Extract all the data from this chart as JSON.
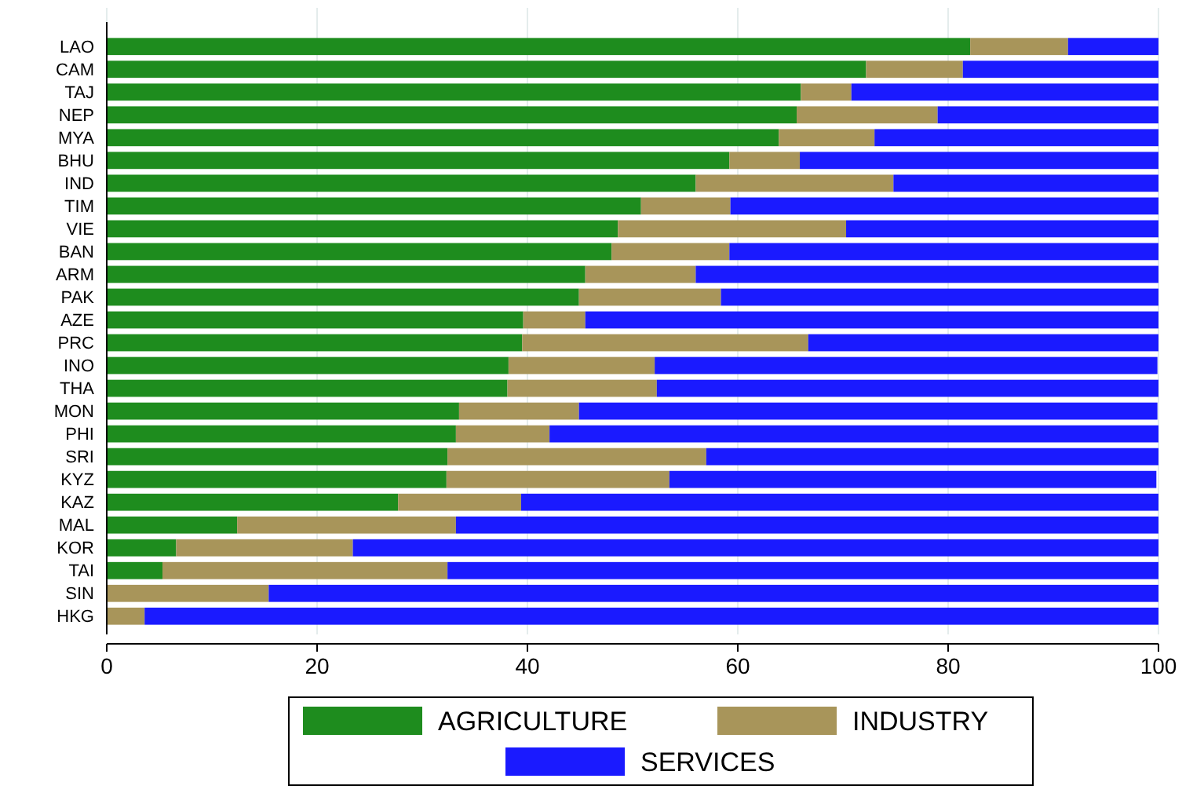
{
  "chart_data": {
    "type": "bar",
    "orientation": "horizontal",
    "stacked": true,
    "categories": [
      "LAO",
      "CAM",
      "TAJ",
      "NEP",
      "MYA",
      "BHU",
      "IND",
      "TIM",
      "VIE",
      "BAN",
      "ARM",
      "PAK",
      "AZE",
      "PRC",
      "INO",
      "THA",
      "MON",
      "PHI",
      "SRI",
      "KYZ",
      "KAZ",
      "MAL",
      "KOR",
      "TAI",
      "SIN",
      "HKG"
    ],
    "series": [
      {
        "name": "AGRICULTURE",
        "color": "#1e8c1e",
        "values": [
          82.1,
          72.2,
          66.0,
          65.6,
          63.9,
          59.2,
          56.0,
          50.8,
          48.6,
          48.0,
          45.5,
          44.9,
          39.6,
          39.5,
          38.2,
          38.1,
          33.5,
          33.2,
          32.4,
          32.3,
          27.7,
          12.4,
          6.6,
          5.3,
          0,
          0
        ]
      },
      {
        "name": "INDUSTRY",
        "color": "#a8955a",
        "values": [
          9.3,
          9.2,
          4.8,
          13.4,
          9.1,
          6.7,
          18.8,
          8.5,
          21.7,
          11.2,
          10.5,
          13.5,
          5.9,
          27.2,
          13.9,
          14.2,
          11.4,
          8.9,
          24.6,
          21.2,
          11.7,
          20.8,
          16.8,
          27.1,
          15.4,
          3.6
        ]
      },
      {
        "name": "SERVICES",
        "color": "#1a1aff",
        "values": [
          8.6,
          18.6,
          29.2,
          21.0,
          27.0,
          34.1,
          25.2,
          40.7,
          29.7,
          40.8,
          44.0,
          41.6,
          54.5,
          33.3,
          47.8,
          47.7,
          55.0,
          57.9,
          43.0,
          46.3,
          60.6,
          66.8,
          76.6,
          67.6,
          84.6,
          96.4
        ]
      }
    ],
    "xlim": [
      0,
      100
    ],
    "xticks": [
      0,
      20,
      40,
      60,
      80,
      100
    ],
    "grid": "x",
    "legend": "bottom"
  }
}
